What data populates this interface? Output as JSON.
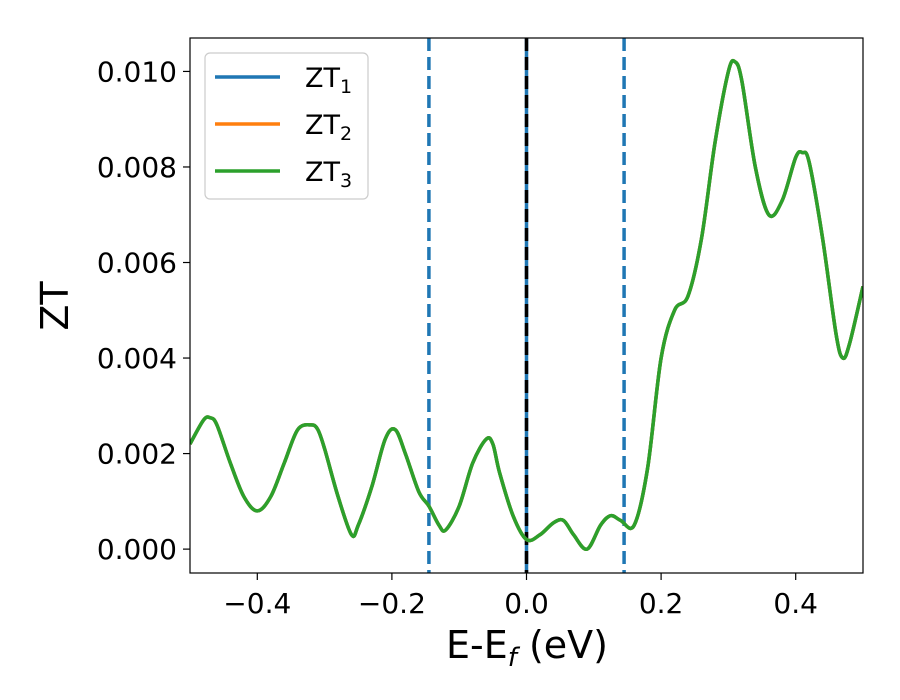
{
  "chart_data": {
    "type": "line",
    "xlabel": "E-E",
    "xlabel_sub": "f",
    "xlabel_unit": " (eV)",
    "ylabel": "ZT",
    "xlim": [
      -0.5,
      0.5
    ],
    "ylim": [
      -0.0005,
      0.0107
    ],
    "x_ticks": [
      -0.4,
      -0.2,
      0.0,
      0.2,
      0.4
    ],
    "x_tick_labels": [
      "−0.4",
      "−0.2",
      "0.0",
      "0.2",
      "0.4"
    ],
    "y_ticks": [
      0.0,
      0.002,
      0.004,
      0.006,
      0.008,
      0.01
    ],
    "y_tick_labels": [
      "0.000",
      "0.002",
      "0.004",
      "0.006",
      "0.008",
      "0.010"
    ],
    "grid": false,
    "legend_position": "top-left",
    "colors": {
      "zt1": "#1f77b4",
      "zt2": "#ff7f0e",
      "zt3": "#2ca02c",
      "fermi": "#000000"
    },
    "vlines": [
      {
        "x": -0.145,
        "style": "dashed",
        "color": "#1f77b4"
      },
      {
        "x": 0.0,
        "style": "solid",
        "color": "#1f77b4"
      },
      {
        "x": 0.0,
        "style": "dashed",
        "color": "#000000"
      },
      {
        "x": 0.145,
        "style": "dashed",
        "color": "#1f77b4"
      }
    ],
    "x": [
      -0.5,
      -0.48,
      -0.47,
      -0.46,
      -0.44,
      -0.42,
      -0.4,
      -0.38,
      -0.36,
      -0.34,
      -0.32,
      -0.31,
      -0.3,
      -0.28,
      -0.26,
      -0.25,
      -0.23,
      -0.21,
      -0.195,
      -0.18,
      -0.16,
      -0.145,
      -0.13,
      -0.12,
      -0.1,
      -0.08,
      -0.06,
      -0.05,
      -0.04,
      -0.02,
      0.0,
      0.02,
      0.04,
      0.055,
      0.07,
      0.09,
      0.11,
      0.125,
      0.14,
      0.16,
      0.18,
      0.2,
      0.22,
      0.24,
      0.26,
      0.28,
      0.3,
      0.31,
      0.32,
      0.34,
      0.36,
      0.38,
      0.4,
      0.41,
      0.42,
      0.44,
      0.46,
      0.47,
      0.48,
      0.5
    ],
    "series": [
      {
        "name": "ZT",
        "sub": "1",
        "values": [
          0.0022,
          0.0027,
          0.00275,
          0.0026,
          0.0018,
          0.0011,
          0.0008,
          0.0011,
          0.0018,
          0.0025,
          0.0026,
          0.0025,
          0.0021,
          0.0011,
          0.0003,
          0.0005,
          0.0013,
          0.0023,
          0.0025,
          0.002,
          0.0012,
          0.0009,
          0.0005,
          0.0004,
          0.0009,
          0.0018,
          0.0023,
          0.0022,
          0.0016,
          0.0007,
          0.0002,
          0.0003,
          0.00055,
          0.0006,
          0.0003,
          0.0,
          0.0005,
          0.0007,
          0.0006,
          0.0005,
          0.0017,
          0.004,
          0.005,
          0.0053,
          0.0065,
          0.0085,
          0.01,
          0.0102,
          0.0098,
          0.008,
          0.007,
          0.0073,
          0.0082,
          0.0083,
          0.0081,
          0.0065,
          0.0045,
          0.004,
          0.0043,
          0.0055
        ]
      },
      {
        "name": "ZT",
        "sub": "2",
        "values": [
          0.0022,
          0.0027,
          0.00275,
          0.0026,
          0.0018,
          0.0011,
          0.0008,
          0.0011,
          0.0018,
          0.0025,
          0.0026,
          0.0025,
          0.0021,
          0.0011,
          0.0003,
          0.0005,
          0.0013,
          0.0023,
          0.0025,
          0.002,
          0.0012,
          0.0009,
          0.0005,
          0.0004,
          0.0009,
          0.0018,
          0.0023,
          0.0022,
          0.0016,
          0.0007,
          0.0002,
          0.0003,
          0.00055,
          0.0006,
          0.0003,
          0.0,
          0.0005,
          0.0007,
          0.0006,
          0.0005,
          0.0017,
          0.004,
          0.005,
          0.0053,
          0.0065,
          0.0085,
          0.01,
          0.0102,
          0.0098,
          0.008,
          0.007,
          0.0073,
          0.0082,
          0.0083,
          0.0081,
          0.0065,
          0.0045,
          0.004,
          0.0043,
          0.0055
        ]
      },
      {
        "name": "ZT",
        "sub": "3",
        "values": [
          0.0022,
          0.0027,
          0.00275,
          0.0026,
          0.0018,
          0.0011,
          0.0008,
          0.0011,
          0.0018,
          0.0025,
          0.0026,
          0.0025,
          0.0021,
          0.0011,
          0.0003,
          0.0005,
          0.0013,
          0.0023,
          0.0025,
          0.002,
          0.0012,
          0.0009,
          0.0005,
          0.0004,
          0.0009,
          0.0018,
          0.0023,
          0.0022,
          0.0016,
          0.0007,
          0.0002,
          0.0003,
          0.00055,
          0.0006,
          0.0003,
          0.0,
          0.0005,
          0.0007,
          0.0006,
          0.0005,
          0.0017,
          0.004,
          0.005,
          0.0053,
          0.0065,
          0.0085,
          0.01,
          0.0102,
          0.0098,
          0.008,
          0.007,
          0.0073,
          0.0082,
          0.0083,
          0.0081,
          0.0065,
          0.0045,
          0.004,
          0.0043,
          0.0055
        ]
      }
    ]
  }
}
